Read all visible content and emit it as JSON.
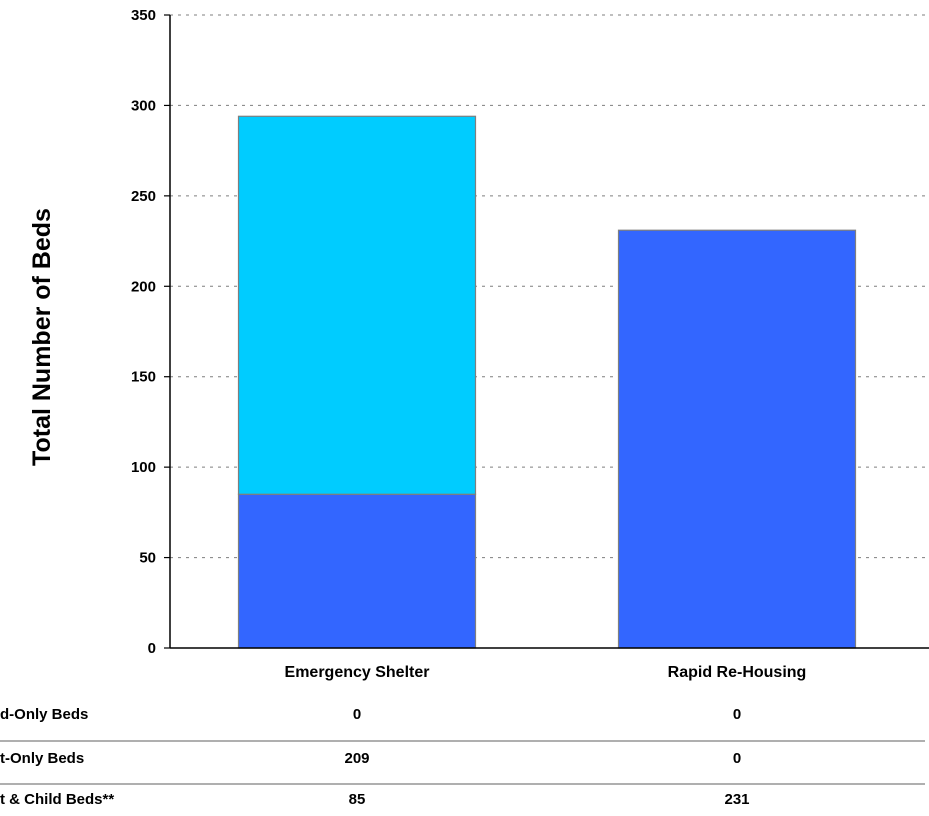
{
  "chart_data": {
    "type": "bar",
    "stacked": true,
    "categories": [
      "Emergency Shelter",
      "Rapid Re-Housing"
    ],
    "series": [
      {
        "name": "Adult & Child Beds**",
        "values": [
          85,
          231
        ],
        "color": "#3366ff"
      },
      {
        "name": "Adult-Only Beds",
        "values": [
          209,
          0
        ],
        "color": "#00ccff"
      },
      {
        "name": "Child-Only Beds",
        "values": [
          0,
          0
        ],
        "color": "#66ccff"
      }
    ],
    "ylabel": "Total Number of Beds",
    "ylim": [
      0,
      350
    ],
    "yticks": [
      0,
      50,
      100,
      150,
      200,
      250,
      300,
      350
    ],
    "grid": true,
    "data_table": {
      "row_labels": [
        "d-Only Beds",
        "t-Only Beds",
        "t & Child Beds**"
      ],
      "rows": [
        [
          "0",
          "0"
        ],
        [
          "209",
          "0"
        ],
        [
          "85",
          "231"
        ]
      ]
    }
  }
}
